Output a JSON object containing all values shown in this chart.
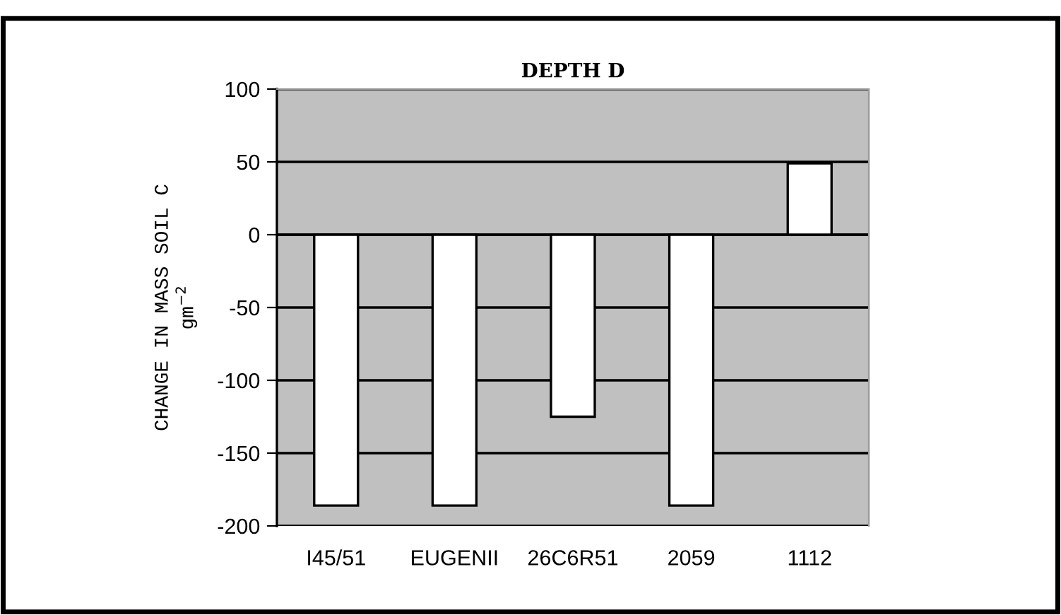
{
  "chart_data": {
    "type": "bar",
    "title": "DEPTH D",
    "ylabel": "CHANGE IN MASS SOIL C\ngm$^{−2}$",
    "categories": [
      "I45/51",
      "EUGENII",
      "26C6R51",
      "2059",
      "1112"
    ],
    "values": [
      -186,
      -186,
      -125,
      -186,
      49
    ],
    "color": "#ffffff",
    "ylim": [
      -200,
      100
    ],
    "yticks": [
      -200,
      -150,
      -100,
      -50,
      0,
      50,
      100
    ],
    "grid": "y"
  }
}
